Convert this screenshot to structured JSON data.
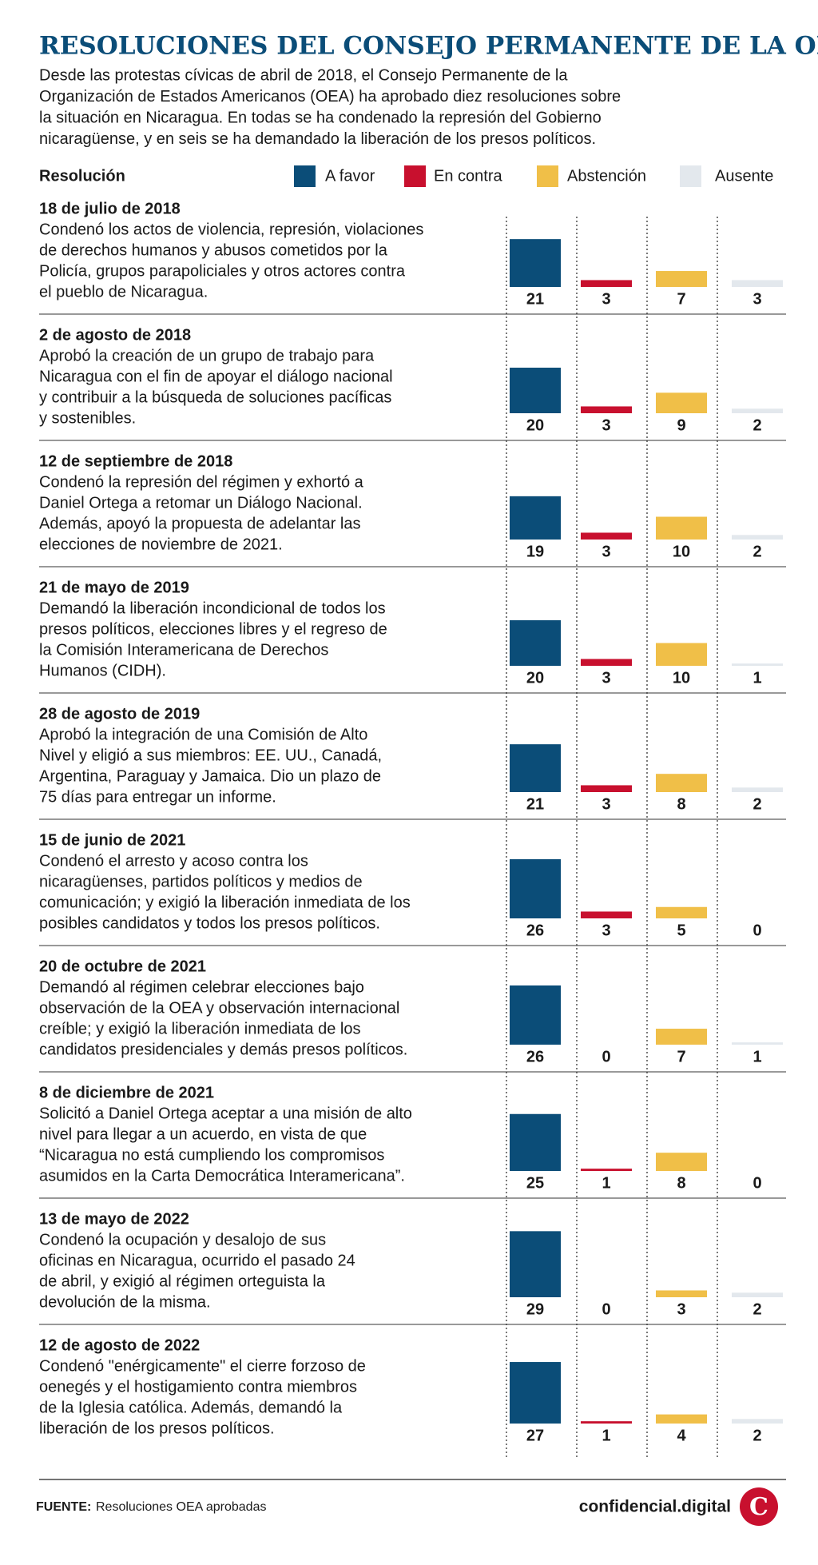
{
  "chart_data": {
    "type": "bar",
    "title": "RESOLUCIONES DEL CONSEJO PERMANENTE DE LA OEA",
    "subtitle": [
      "Desde las protestas cívicas de abril de 2018, el Consejo Permanente de la",
      "Organización de Estados Americanos (OEA) ha aprobado diez resoluciones sobre",
      "la situación en Nicaragua. En todas se ha condenado la represión del Gobierno",
      "nicaragüense, y en seis se ha demandado la liberación de los presos políticos."
    ],
    "column_label": "Resolución",
    "series": [
      {
        "name": "A favor",
        "color": "#0b4d78"
      },
      {
        "name": "En contra",
        "color": "#c8102e"
      },
      {
        "name": "Abstención",
        "color": "#f0bf48"
      },
      {
        "name": "Ausente",
        "color": "#e3e8ed"
      }
    ],
    "rows": [
      {
        "date": "18 de julio de 2018",
        "description": [
          "Condenó los actos de violencia, represión, violaciones",
          "de derechos humanos y abusos cometidos por la",
          "Policía, grupos parapoliciales y otros actores contra",
          "el pueblo de Nicaragua."
        ],
        "values": [
          21,
          3,
          7,
          3
        ]
      },
      {
        "date": "2 de agosto de 2018",
        "description": [
          "Aprobó la creación de un grupo de trabajo para",
          "Nicaragua con el fin de apoyar el diálogo nacional",
          "y contribuir a la búsqueda de soluciones pacíficas",
          "y sostenibles."
        ],
        "values": [
          20,
          3,
          9,
          2
        ]
      },
      {
        "date": "12 de septiembre de 2018",
        "description": [
          "Condenó la represión del régimen y exhortó a",
          "Daniel Ortega a retomar un Diálogo Nacional.",
          "Además, apoyó la propuesta de adelantar las",
          "elecciones de noviembre de 2021."
        ],
        "values": [
          19,
          3,
          10,
          2
        ]
      },
      {
        "date": "21 de mayo de 2019",
        "description": [
          "Demandó la liberación incondicional de todos los",
          "presos políticos, elecciones libres y el regreso de",
          "la Comisión Interamericana de Derechos",
          "Humanos (CIDH)."
        ],
        "values": [
          20,
          3,
          10,
          1
        ]
      },
      {
        "date": "28 de agosto de 2019",
        "description": [
          "Aprobó la integración de una Comisión de Alto",
          "Nivel y eligió a sus miembros: EE. UU., Canadá,",
          "Argentina, Paraguay y Jamaica. Dio un plazo de",
          "75 días para entregar un informe."
        ],
        "values": [
          21,
          3,
          8,
          2
        ]
      },
      {
        "date": "15 de junio de 2021",
        "description": [
          "Condenó el arresto y acoso contra los",
          "nicaragüenses, partidos políticos y medios de",
          "comunicación; y exigió la liberación inmediata de los",
          "posibles candidatos y todos los presos políticos."
        ],
        "values": [
          26,
          3,
          5,
          0
        ]
      },
      {
        "date": "20 de octubre de 2021",
        "description": [
          "Demandó al régimen celebrar elecciones bajo",
          "observación de la OEA y observación internacional",
          "creíble; y exigió la liberación inmediata de los",
          "candidatos presidenciales y demás presos políticos."
        ],
        "values": [
          26,
          0,
          7,
          1
        ]
      },
      {
        "date": "8 de diciembre de 2021",
        "description": [
          "Solicitó a Daniel Ortega aceptar a una misión de alto",
          "nivel para llegar a un acuerdo, en vista de que",
          "“Nicaragua no está cumpliendo los compromisos",
          "asumidos en la Carta Democrática Interamericana”."
        ],
        "values": [
          25,
          1,
          8,
          0
        ]
      },
      {
        "date": "13 de mayo de 2022",
        "description": [
          "Condenó la ocupación y desalojo de sus",
          "oficinas en Nicaragua, ocurrido el pasado 24",
          "de abril, y exigió al régimen orteguista la",
          "devolución de la misma."
        ],
        "values": [
          29,
          0,
          3,
          2
        ]
      },
      {
        "date": "12 de agosto de 2022",
        "description": [
          "Condenó \"enérgicamente\" el cierre forzoso de",
          "oenegés y el hostigamiento contra miembros",
          "de la Iglesia católica. Además, demandó la",
          "liberación de los presos políticos."
        ],
        "values": [
          27,
          1,
          4,
          2
        ]
      }
    ],
    "source_label": "FUENTE:",
    "source": "Resoluciones OEA aprobadas",
    "brand": "confidencial.digital",
    "logo": "C"
  }
}
